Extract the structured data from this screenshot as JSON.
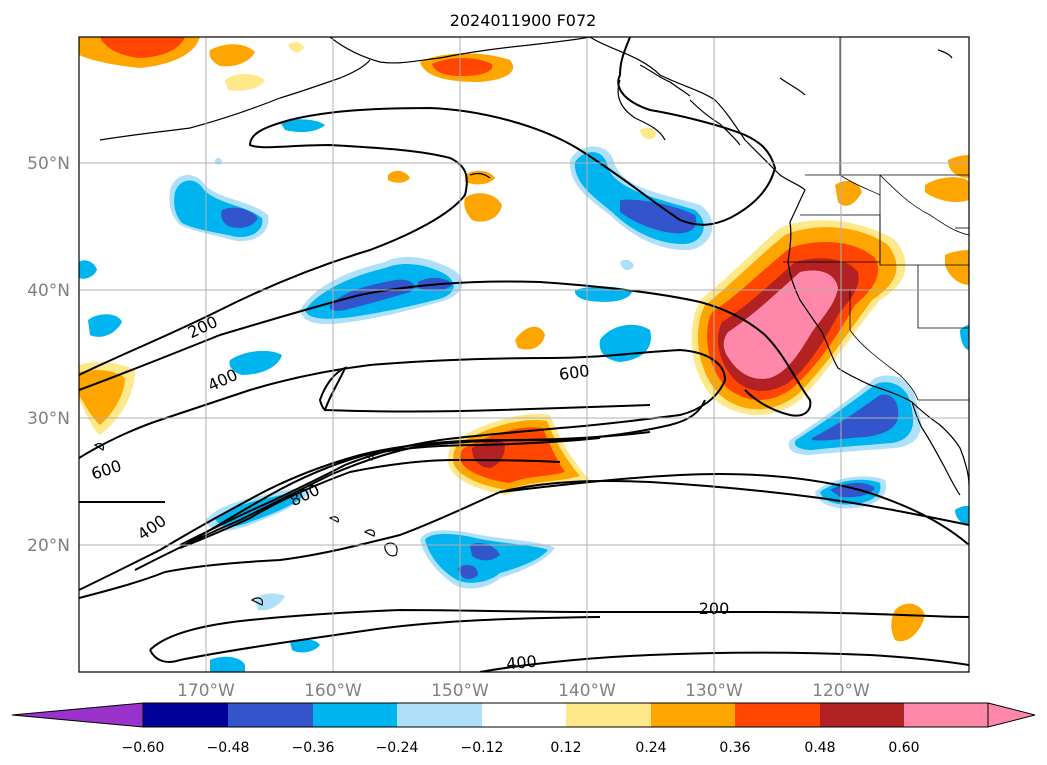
{
  "title": "2024011900 F072",
  "latitude_ticks": [
    "20°N",
    "30°N",
    "40°N",
    "50°N"
  ],
  "longitude_ticks": [
    "170°W",
    "160°W",
    "150°W",
    "140°W",
    "130°W",
    "120°W"
  ],
  "colorbar": {
    "levels": [
      "−0.60",
      "−0.48",
      "−0.36",
      "−0.24",
      "−0.12",
      "0.12",
      "0.24",
      "0.36",
      "0.48",
      "0.60"
    ],
    "colors": {
      "under": "#9933cc",
      "neg060": "#000099",
      "neg048": "#3355cc",
      "neg036": "#00b4f0",
      "neg024": "#aee0fa",
      "neutral": "#ffffff",
      "pos012": "#ffe88a",
      "pos024": "#ffa500",
      "pos036": "#ff4500",
      "pos048": "#b22222",
      "over": "#ff88aa"
    }
  },
  "contour_labels": [
    "200",
    "400",
    "600",
    "600",
    "800",
    "400",
    "200",
    "400"
  ],
  "map": {
    "gridline_color": "#b0b0b0",
    "contour_color": "#000000",
    "coastline_color": "#000000"
  }
}
